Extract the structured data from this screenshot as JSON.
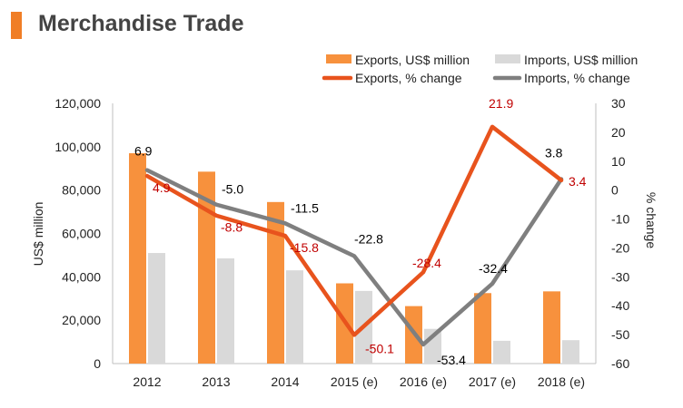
{
  "page": {
    "title": "Merchandise Trade"
  },
  "colors": {
    "accent": "#f07e26",
    "exports_bar": "#f7913d",
    "imports_bar": "#d9d9d9",
    "exports_line": "#e8531d",
    "imports_line": "#7f7f7f",
    "exports_label": "#c00000",
    "imports_label": "#000000"
  },
  "chart_data": {
    "type": "bar",
    "combo": "bar + line (dual axis)",
    "title": "Merchandise Trade",
    "categories": [
      "2012",
      "2013",
      "2014",
      "2015 (e)",
      "2016 (e)",
      "2017 (e)",
      "2018 (e)"
    ],
    "series": [
      {
        "name": "Exports, US$ million",
        "type": "bar",
        "axis": "left",
        "values": [
          97000,
          88500,
          74500,
          37000,
          26500,
          32500,
          33300
        ]
      },
      {
        "name": "Imports, US$ million",
        "type": "bar",
        "axis": "left",
        "values": [
          51000,
          48500,
          43000,
          33500,
          16000,
          10500,
          10800
        ]
      },
      {
        "name": "Exports, % change",
        "type": "line",
        "axis": "right",
        "values": [
          4.9,
          -8.8,
          -15.8,
          -50.1,
          -28.4,
          21.9,
          3.4
        ],
        "labels": [
          "4.9",
          "-8.8",
          "-15.8",
          "-50.1",
          "-28.4",
          "21.9",
          "3.4"
        ]
      },
      {
        "name": "Imports, % change",
        "type": "line",
        "axis": "right",
        "values": [
          6.9,
          -5.0,
          -11.5,
          -22.8,
          -53.4,
          -32.4,
          3.8
        ],
        "labels": [
          "6.9",
          "-5.0",
          "-11.5",
          "-22.8",
          "-53.4",
          "-32.4",
          "3.8"
        ]
      }
    ],
    "ylabel": "US$ million",
    "y2label": "% change",
    "ylim": [
      0,
      120000
    ],
    "y2lim": [
      -60,
      30
    ],
    "yticks": [
      "0",
      "20,000",
      "40,000",
      "60,000",
      "80,000",
      "100,000",
      "120,000"
    ],
    "y2ticks": [
      "-60",
      "-50",
      "-40",
      "-30",
      "-20",
      "-10",
      "0",
      "10",
      "20",
      "30"
    ],
    "grid": false,
    "legend": "top-right"
  }
}
